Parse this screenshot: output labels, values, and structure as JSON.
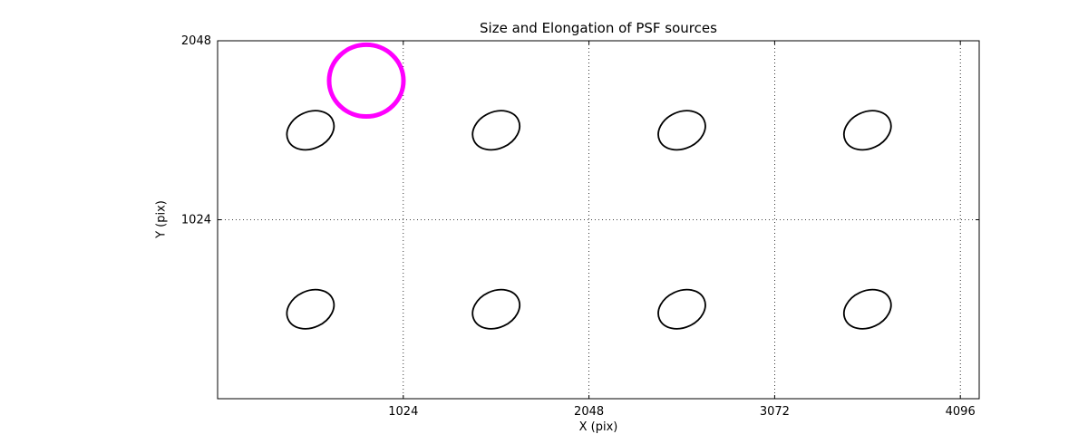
{
  "chart_data": {
    "type": "scatter",
    "subtype": "ellipse-markers",
    "title": "Size and Elongation of PSF sources",
    "xlabel": "X (pix)",
    "ylabel": "Y (pix)",
    "xlim": [
      0,
      4200
    ],
    "ylim": [
      0,
      2048
    ],
    "xticks": [
      1024,
      2048,
      3072,
      4096
    ],
    "yticks": [
      1024,
      2048
    ],
    "grid": true,
    "grid_style": "dotted",
    "frame_color": "#000000",
    "ellipse_color": "#000000",
    "ellipses": [
      {
        "x": 512,
        "y": 1536,
        "a": 135,
        "b": 105,
        "angle": 25
      },
      {
        "x": 1536,
        "y": 1536,
        "a": 135,
        "b": 105,
        "angle": 25
      },
      {
        "x": 2560,
        "y": 1536,
        "a": 135,
        "b": 105,
        "angle": 25
      },
      {
        "x": 3584,
        "y": 1536,
        "a": 135,
        "b": 105,
        "angle": 25
      },
      {
        "x": 512,
        "y": 512,
        "a": 135,
        "b": 105,
        "angle": 25
      },
      {
        "x": 1536,
        "y": 512,
        "a": 135,
        "b": 105,
        "angle": 25
      },
      {
        "x": 2560,
        "y": 512,
        "a": 135,
        "b": 105,
        "angle": 25
      },
      {
        "x": 3584,
        "y": 512,
        "a": 135,
        "b": 105,
        "angle": 25
      }
    ],
    "reference_circle": {
      "x": 820,
      "y": 1820,
      "r": 205,
      "color": "#FF00FF",
      "stroke_width": 5
    }
  }
}
